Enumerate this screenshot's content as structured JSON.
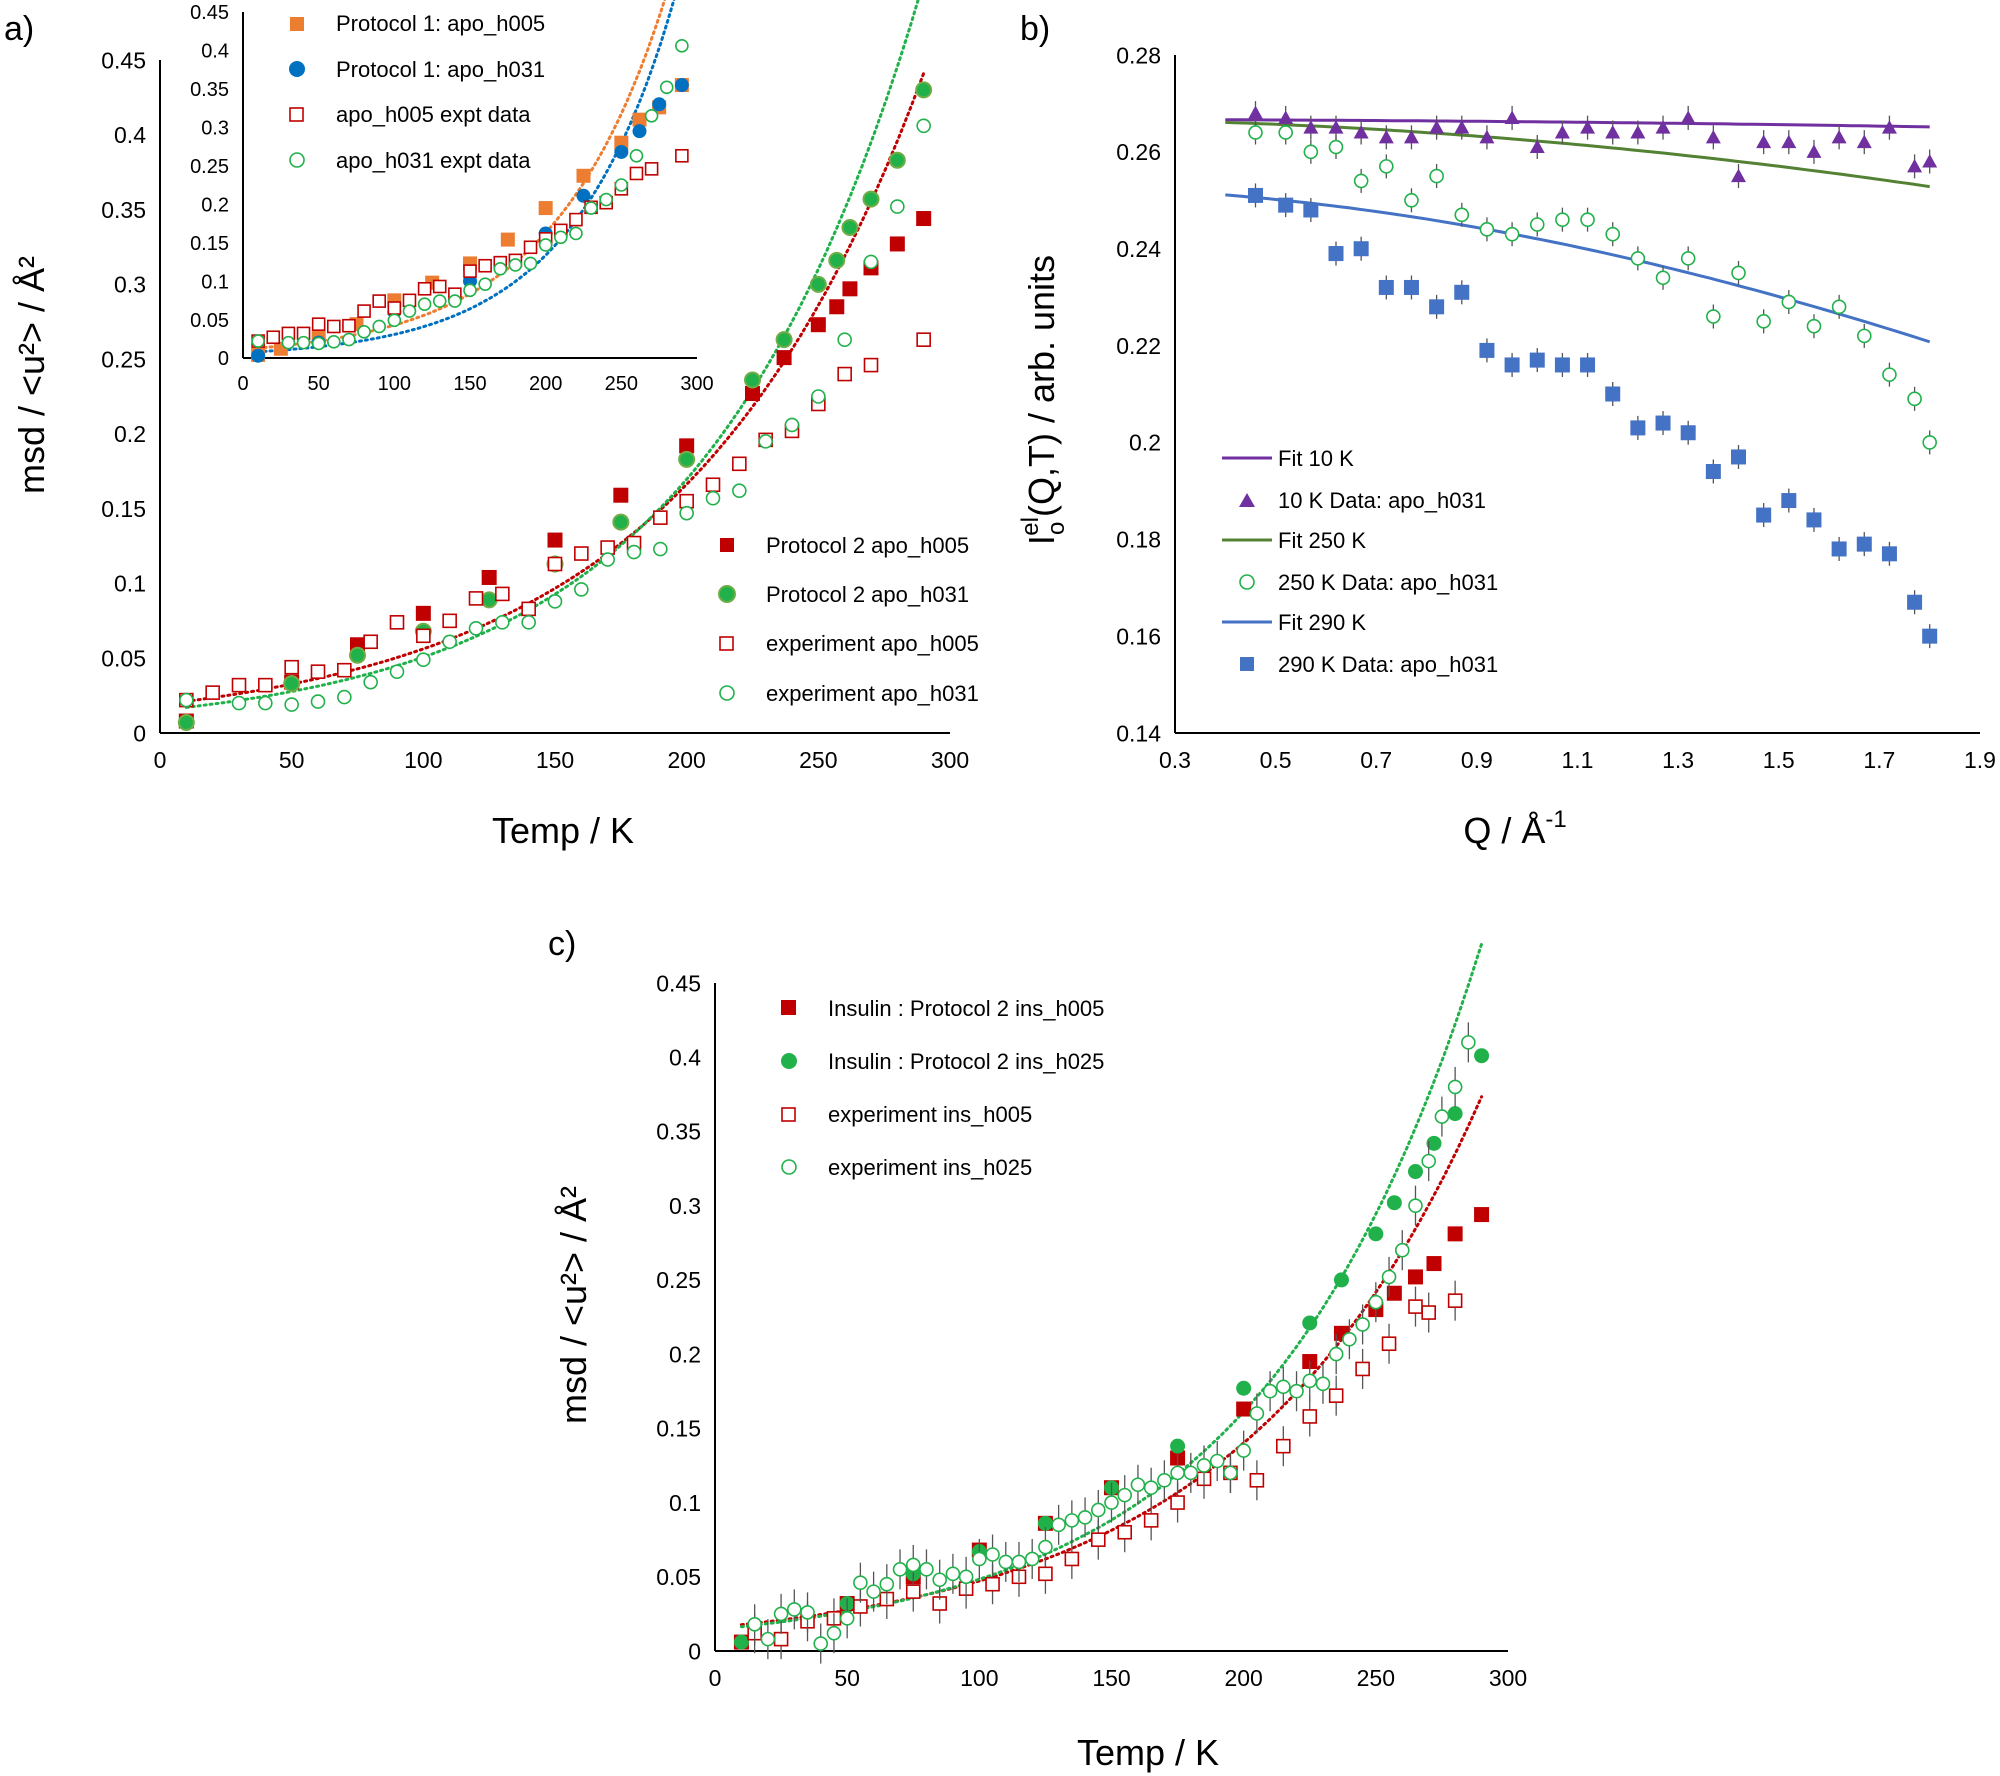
{
  "colors": {
    "red": "#c00000",
    "green": "#21b14b",
    "orange": "#ed7d31",
    "blue_dot": "#0070c0",
    "purple": "#7030a0",
    "fit_purple": "#7030a0",
    "fit_green": "#548235",
    "fit_blue": "#4472c4",
    "sq_blue": "#4472c4",
    "errorbar": "#555555"
  },
  "chart_data": [
    {
      "id": "a",
      "panel_label": "a)",
      "type": "scatter",
      "xlabel": "Temp / K",
      "ylabel": "msd / <u²> / Å²",
      "xlim": [
        0,
        300
      ],
      "ylim": [
        0,
        0.45
      ],
      "xticks": [
        "0",
        "50",
        "100",
        "150",
        "200",
        "250",
        "300"
      ],
      "yticks": [
        "0",
        "0.05",
        "0.1",
        "0.15",
        "0.2",
        "0.25",
        "0.3",
        "0.35",
        "0.4",
        "0.45"
      ],
      "series": [
        {
          "name": "Protocol 2 apo_h005",
          "marker": "square-filled",
          "color": "red",
          "trend": true,
          "x": [
            10,
            50,
            75,
            100,
            125,
            150,
            175,
            200,
            225,
            237,
            250,
            257,
            262,
            270,
            280,
            290
          ],
          "y": [
            0.008,
            0.034,
            0.059,
            0.08,
            0.104,
            0.129,
            0.159,
            0.192,
            0.227,
            0.251,
            0.273,
            0.285,
            0.297,
            0.311,
            0.327,
            0.344
          ]
        },
        {
          "name": "Protocol 2 apo_h031",
          "marker": "circle-filled-green-edge",
          "color": "green",
          "trend": true,
          "x": [
            10,
            50,
            75,
            100,
            125,
            150,
            175,
            200,
            225,
            237,
            250,
            257,
            262,
            270,
            280,
            290
          ],
          "y": [
            0.007,
            0.033,
            0.052,
            0.068,
            0.089,
            0.113,
            0.141,
            0.183,
            0.236,
            0.263,
            0.3,
            0.316,
            0.338,
            0.357,
            0.383,
            0.43
          ]
        },
        {
          "name": "experiment apo_h005",
          "marker": "square-open",
          "color": "red",
          "trend": false,
          "x": [
            10,
            20,
            30,
            40,
            50,
            60,
            70,
            80,
            90,
            100,
            110,
            120,
            130,
            140,
            150,
            160,
            170,
            180,
            190,
            200,
            210,
            220,
            230,
            240,
            250,
            260,
            270,
            290
          ],
          "y": [
            0.022,
            0.027,
            0.032,
            0.032,
            0.044,
            0.041,
            0.042,
            0.061,
            0.074,
            0.065,
            0.075,
            0.09,
            0.093,
            0.083,
            0.113,
            0.12,
            0.124,
            0.127,
            0.144,
            0.155,
            0.166,
            0.18,
            0.196,
            0.202,
            0.22,
            0.24,
            0.246,
            0.263
          ]
        },
        {
          "name": "experiment apo_h031",
          "marker": "circle-open",
          "color": "green",
          "trend": false,
          "x": [
            10,
            30,
            40,
            50,
            60,
            70,
            80,
            90,
            100,
            110,
            120,
            130,
            140,
            150,
            160,
            170,
            180,
            190,
            200,
            210,
            220,
            230,
            240,
            250,
            260,
            270,
            280,
            290
          ],
          "y": [
            0.022,
            0.02,
            0.02,
            0.019,
            0.021,
            0.024,
            0.034,
            0.041,
            0.049,
            0.061,
            0.07,
            0.074,
            0.074,
            0.088,
            0.096,
            0.116,
            0.121,
            0.123,
            0.147,
            0.157,
            0.162,
            0.195,
            0.206,
            0.225,
            0.263,
            0.315,
            0.352,
            0.406
          ]
        }
      ],
      "inset": {
        "xlim": [
          0,
          300
        ],
        "ylim": [
          0,
          0.45
        ],
        "xticks": [
          "0",
          "50",
          "100",
          "150",
          "200",
          "250",
          "300"
        ],
        "yticks": [
          "0",
          "0.05",
          "0.1",
          "0.15",
          "0.2",
          "0.25",
          "0.3",
          "0.35",
          "0.4",
          "0.45"
        ],
        "series": [
          {
            "name": "Protocol 1: apo_h005",
            "marker": "square-filled",
            "color": "orange",
            "trend": true,
            "x": [
              10,
              25,
              50,
              75,
              100,
              125,
              150,
              175,
              200,
              225,
              250,
              262,
              275,
              290
            ],
            "y": [
              0.004,
              0.012,
              0.026,
              0.044,
              0.075,
              0.098,
              0.123,
              0.154,
              0.195,
              0.237,
              0.28,
              0.31,
              0.326,
              0.355
            ]
          },
          {
            "name": "Protocol 1: apo_h031",
            "marker": "circle-filled",
            "color": "blue_dot",
            "trend": true,
            "x": [
              10,
              50,
              100,
              150,
              200,
              225,
              250,
              262,
              275,
              290
            ],
            "y": [
              0.003,
              0.02,
              0.06,
              0.1,
              0.162,
              0.211,
              0.268,
              0.295,
              0.33,
              0.355
            ]
          },
          {
            "name": "apo_h005 expt data",
            "marker": "square-open",
            "color": "red",
            "trend": false,
            "x": [
              10,
              20,
              30,
              40,
              50,
              60,
              70,
              80,
              90,
              100,
              110,
              120,
              130,
              140,
              150,
              160,
              170,
              180,
              190,
              200,
              210,
              220,
              230,
              240,
              250,
              260,
              270,
              290
            ],
            "y": [
              0.022,
              0.027,
              0.032,
              0.032,
              0.044,
              0.041,
              0.042,
              0.061,
              0.074,
              0.065,
              0.075,
              0.09,
              0.093,
              0.083,
              0.113,
              0.12,
              0.124,
              0.127,
              0.144,
              0.155,
              0.166,
              0.18,
              0.196,
              0.202,
              0.22,
              0.24,
              0.246,
              0.263
            ]
          },
          {
            "name": "apo_h031 expt data",
            "marker": "circle-open",
            "color": "green",
            "trend": false,
            "x": [
              10,
              30,
              40,
              50,
              60,
              70,
              80,
              90,
              100,
              110,
              120,
              130,
              140,
              150,
              160,
              170,
              180,
              190,
              200,
              210,
              220,
              230,
              240,
              250,
              260,
              270,
              280,
              290
            ],
            "y": [
              0.022,
              0.02,
              0.02,
              0.019,
              0.021,
              0.024,
              0.034,
              0.041,
              0.049,
              0.061,
              0.07,
              0.074,
              0.074,
              0.088,
              0.096,
              0.116,
              0.121,
              0.123,
              0.147,
              0.157,
              0.162,
              0.195,
              0.206,
              0.225,
              0.263,
              0.315,
              0.352,
              0.406
            ]
          }
        ]
      }
    },
    {
      "id": "b",
      "panel_label": "b)",
      "type": "scatter",
      "xlabel": "Q / Å",
      "xlabel_sup": "-1",
      "ylabel_main": "I",
      "ylabel_sub": "o",
      "ylabel_sup": "el",
      "ylabel_rest": "(Q,T) / arb. units",
      "xlim": [
        0.3,
        1.9
      ],
      "ylim": [
        0.14,
        0.28
      ],
      "xticks": [
        "0.3",
        "0.5",
        "0.7",
        "0.9",
        "1.1",
        "1.3",
        "1.5",
        "1.7",
        "1.9"
      ],
      "yticks": [
        "0.14",
        "0.16",
        "0.18",
        "0.2",
        "0.22",
        "0.24",
        "0.26",
        "0.28"
      ],
      "fits": [
        {
          "name": "Fit 10 K",
          "color": "fit_purple",
          "a": 0.2667,
          "b": 0.0018
        },
        {
          "name": "Fit 250 K",
          "color": "fit_green",
          "a": 0.2668,
          "b": 0.0166
        },
        {
          "name": "Fit 290 K",
          "color": "fit_blue",
          "a": 0.2528,
          "b": 0.0418
        }
      ],
      "series": [
        {
          "name": "10 K Data: apo_h031",
          "marker": "triangle-filled",
          "color": "purple",
          "x": [
            0.46,
            0.52,
            0.57,
            0.62,
            0.67,
            0.72,
            0.77,
            0.82,
            0.87,
            0.92,
            0.97,
            1.02,
            1.07,
            1.12,
            1.17,
            1.22,
            1.27,
            1.32,
            1.37,
            1.42,
            1.47,
            1.52,
            1.57,
            1.62,
            1.67,
            1.72,
            1.77,
            1.8
          ],
          "y": [
            0.268,
            0.267,
            0.265,
            0.265,
            0.264,
            0.263,
            0.263,
            0.265,
            0.265,
            0.263,
            0.267,
            0.261,
            0.264,
            0.265,
            0.264,
            0.264,
            0.265,
            0.267,
            0.263,
            0.255,
            0.262,
            0.262,
            0.26,
            0.263,
            0.262,
            0.265,
            0.257,
            0.258
          ]
        },
        {
          "name": "250 K Data: apo_h031",
          "marker": "circle-open",
          "color": "green",
          "x": [
            0.46,
            0.52,
            0.57,
            0.62,
            0.67,
            0.72,
            0.77,
            0.82,
            0.87,
            0.92,
            0.97,
            1.02,
            1.07,
            1.12,
            1.17,
            1.22,
            1.27,
            1.32,
            1.37,
            1.42,
            1.47,
            1.52,
            1.57,
            1.62,
            1.67,
            1.72,
            1.77,
            1.8
          ],
          "y": [
            0.264,
            0.264,
            0.26,
            0.261,
            0.254,
            0.257,
            0.25,
            0.255,
            0.247,
            0.244,
            0.243,
            0.245,
            0.246,
            0.246,
            0.243,
            0.238,
            0.234,
            0.238,
            0.226,
            0.235,
            0.225,
            0.229,
            0.224,
            0.228,
            0.222,
            0.214,
            0.209,
            0.2
          ]
        },
        {
          "name": "290 K Data: apo_h031",
          "marker": "square-filled",
          "color": "sq_blue",
          "x": [
            0.46,
            0.52,
            0.57,
            0.62,
            0.67,
            0.72,
            0.77,
            0.82,
            0.87,
            0.92,
            0.97,
            1.02,
            1.07,
            1.12,
            1.17,
            1.22,
            1.27,
            1.32,
            1.37,
            1.42,
            1.47,
            1.52,
            1.57,
            1.62,
            1.67,
            1.72,
            1.77,
            1.8
          ],
          "y": [
            0.251,
            0.249,
            0.248,
            0.239,
            0.24,
            0.232,
            0.232,
            0.228,
            0.231,
            0.219,
            0.216,
            0.217,
            0.216,
            0.216,
            0.21,
            0.203,
            0.204,
            0.202,
            0.194,
            0.197,
            0.185,
            0.188,
            0.184,
            0.178,
            0.179,
            0.177,
            0.167,
            0.16
          ]
        }
      ]
    },
    {
      "id": "c",
      "panel_label": "c)",
      "type": "scatter",
      "xlabel": "Temp / K",
      "ylabel": "msd / <u²> / Å²",
      "xlim": [
        0,
        300
      ],
      "ylim": [
        0,
        0.45
      ],
      "xticks": [
        "0",
        "50",
        "100",
        "150",
        "200",
        "250",
        "300"
      ],
      "yticks": [
        "0",
        "0.05",
        "0.1",
        "0.15",
        "0.2",
        "0.25",
        "0.3",
        "0.35",
        "0.4",
        "0.45"
      ],
      "series": [
        {
          "name": "Insulin : Protocol 2 ins_h005",
          "marker": "square-filled",
          "color": "red",
          "trend": true,
          "x": [
            10,
            50,
            75,
            100,
            125,
            150,
            175,
            200,
            225,
            237,
            250,
            257,
            265,
            272,
            280,
            290
          ],
          "y": [
            0.006,
            0.032,
            0.05,
            0.068,
            0.086,
            0.11,
            0.13,
            0.163,
            0.195,
            0.214,
            0.23,
            0.241,
            0.252,
            0.261,
            0.281,
            0.294
          ]
        },
        {
          "name": "Insulin : Protocol 2 ins_h025",
          "marker": "circle-filled",
          "color": "green",
          "trend": true,
          "x": [
            10,
            50,
            75,
            100,
            125,
            150,
            175,
            200,
            225,
            237,
            250,
            257,
            265,
            272,
            280,
            290
          ],
          "y": [
            0.006,
            0.032,
            0.052,
            0.067,
            0.086,
            0.11,
            0.138,
            0.177,
            0.221,
            0.25,
            0.281,
            0.302,
            0.323,
            0.342,
            0.362,
            0.401
          ]
        },
        {
          "name": "experiment ins_h005",
          "marker": "square-open",
          "color": "red",
          "trend": false,
          "x": [
            15,
            25,
            35,
            45,
            55,
            65,
            75,
            85,
            95,
            105,
            115,
            125,
            135,
            145,
            155,
            165,
            175,
            185,
            195,
            205,
            215,
            225,
            235,
            245,
            255,
            265,
            270,
            280
          ],
          "y": [
            0.012,
            0.008,
            0.02,
            0.022,
            0.03,
            0.035,
            0.04,
            0.032,
            0.042,
            0.045,
            0.05,
            0.052,
            0.062,
            0.075,
            0.08,
            0.088,
            0.1,
            0.116,
            0.12,
            0.115,
            0.138,
            0.158,
            0.172,
            0.19,
            0.207,
            0.232,
            0.228,
            0.236
          ]
        },
        {
          "name": "experiment ins_h025",
          "marker": "circle-open",
          "color": "green",
          "trend": false,
          "x": [
            15,
            20,
            25,
            30,
            35,
            40,
            45,
            50,
            55,
            60,
            65,
            70,
            75,
            80,
            85,
            90,
            95,
            100,
            105,
            110,
            115,
            120,
            125,
            130,
            135,
            140,
            145,
            150,
            155,
            160,
            165,
            170,
            175,
            180,
            185,
            190,
            195,
            200,
            205,
            210,
            215,
            220,
            225,
            230,
            235,
            240,
            245,
            250,
            255,
            260,
            265,
            270,
            275,
            280,
            285
          ],
          "y": [
            0.018,
            0.008,
            0.025,
            0.028,
            0.026,
            0.005,
            0.012,
            0.022,
            0.046,
            0.04,
            0.045,
            0.055,
            0.058,
            0.055,
            0.048,
            0.052,
            0.05,
            0.062,
            0.065,
            0.06,
            0.06,
            0.062,
            0.07,
            0.085,
            0.088,
            0.09,
            0.095,
            0.1,
            0.105,
            0.112,
            0.11,
            0.115,
            0.12,
            0.12,
            0.125,
            0.128,
            0.12,
            0.135,
            0.16,
            0.175,
            0.178,
            0.175,
            0.182,
            0.18,
            0.2,
            0.21,
            0.22,
            0.235,
            0.252,
            0.27,
            0.3,
            0.33,
            0.36,
            0.38,
            0.41
          ]
        }
      ]
    }
  ]
}
